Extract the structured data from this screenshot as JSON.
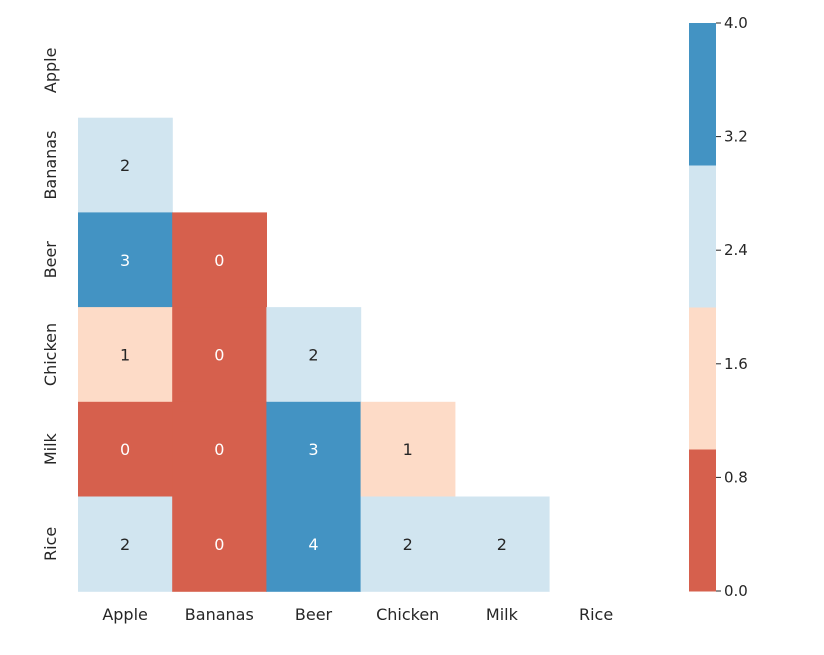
{
  "chart_data": {
    "type": "heatmap",
    "title": "",
    "xlabel": "",
    "ylabel": "",
    "mask": "lower-triangle (diagonal and upper triangle hidden)",
    "x_categories": [
      "Apple",
      "Bananas",
      "Beer",
      "Chicken",
      "Milk",
      "Rice"
    ],
    "y_categories": [
      "Apple",
      "Bananas",
      "Beer",
      "Chicken",
      "Milk",
      "Rice"
    ],
    "values": [
      [
        null,
        null,
        null,
        null,
        null,
        null
      ],
      [
        2,
        null,
        null,
        null,
        null,
        null
      ],
      [
        3,
        0,
        null,
        null,
        null,
        null
      ],
      [
        1,
        0,
        2,
        null,
        null,
        null
      ],
      [
        0,
        0,
        3,
        1,
        null,
        null
      ],
      [
        2,
        0,
        4,
        2,
        2,
        null
      ]
    ],
    "colorbar": {
      "range": [
        0.0,
        4.0
      ],
      "ticks": [
        "0.0",
        "0.8",
        "1.6",
        "2.4",
        "3.2",
        "4.0"
      ],
      "bins": [
        {
          "from": 0.0,
          "to": 1.0,
          "color": "#d6604d"
        },
        {
          "from": 1.0,
          "to": 2.0,
          "color": "#fddbc7"
        },
        {
          "from": 2.0,
          "to": 3.0,
          "color": "#d1e5f0"
        },
        {
          "from": 3.0,
          "to": 4.0,
          "color": "#4393c3"
        }
      ]
    },
    "grid": false,
    "legend": "right (colorbar)"
  }
}
